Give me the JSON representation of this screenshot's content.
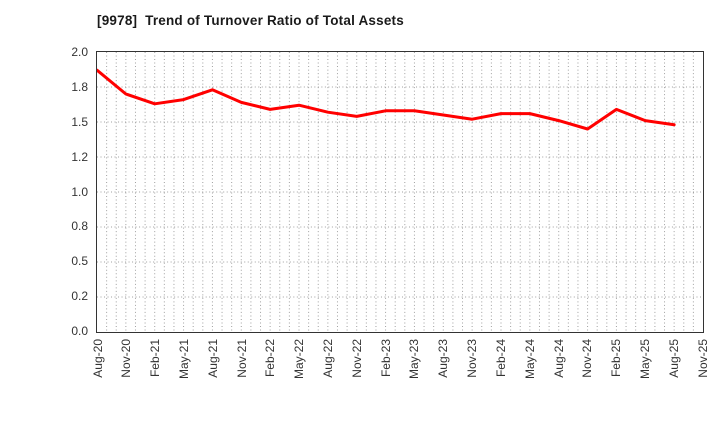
{
  "title": "[9978]  Trend of Turnover Ratio of Total Assets",
  "colors": {
    "line": "#ff0000",
    "grid": "#a0a0a0",
    "spine": "#333333",
    "title_text": "#1a1a1a",
    "tick_text": "#333333",
    "background": "#ffffff"
  },
  "chart_data": {
    "type": "line",
    "title": "[9978]  Trend of Turnover Ratio of Total Assets",
    "xlabel": "",
    "ylabel": "",
    "legend": "none",
    "grid": "dotted gray; vertical lines monthly, horizontal lines every 0.25",
    "ylim": [
      0.0,
      2.0
    ],
    "ytick_values": [
      0.0,
      0.25,
      0.5,
      0.75,
      1.0,
      1.25,
      1.5,
      1.75,
      2.0
    ],
    "ytick_labels": [
      "0.0",
      "0.2",
      "0.5",
      "0.8",
      "1.0",
      "1.2",
      "1.5",
      "1.8",
      "2.0"
    ],
    "x_tick_labels": [
      "Aug-20",
      "Nov-20",
      "Feb-21",
      "May-21",
      "Aug-21",
      "Nov-21",
      "Feb-22",
      "May-22",
      "Aug-22",
      "Nov-22",
      "Feb-23",
      "May-23",
      "Aug-23",
      "Nov-23",
      "Feb-24",
      "May-24",
      "Aug-24",
      "Nov-24",
      "Feb-25",
      "May-25",
      "Aug-25",
      "Nov-25"
    ],
    "series": [
      {
        "name": "Turnover Ratio of Total Assets",
        "color": "#ff0000",
        "x_labels": [
          "Aug-20",
          "Nov-20",
          "Feb-21",
          "May-21",
          "Aug-21",
          "Nov-21",
          "Feb-22",
          "May-22",
          "Aug-22",
          "Nov-22",
          "Feb-23",
          "May-23",
          "Aug-23",
          "Nov-23",
          "Feb-24",
          "May-24",
          "Aug-24",
          "Nov-24",
          "Feb-25",
          "May-25",
          "Aug-25"
        ],
        "values": [
          1.87,
          1.7,
          1.63,
          1.66,
          1.73,
          1.64,
          1.59,
          1.62,
          1.57,
          1.54,
          1.58,
          1.58,
          1.55,
          1.52,
          1.56,
          1.56,
          1.51,
          1.45,
          1.59,
          1.51,
          1.48
        ]
      }
    ]
  }
}
